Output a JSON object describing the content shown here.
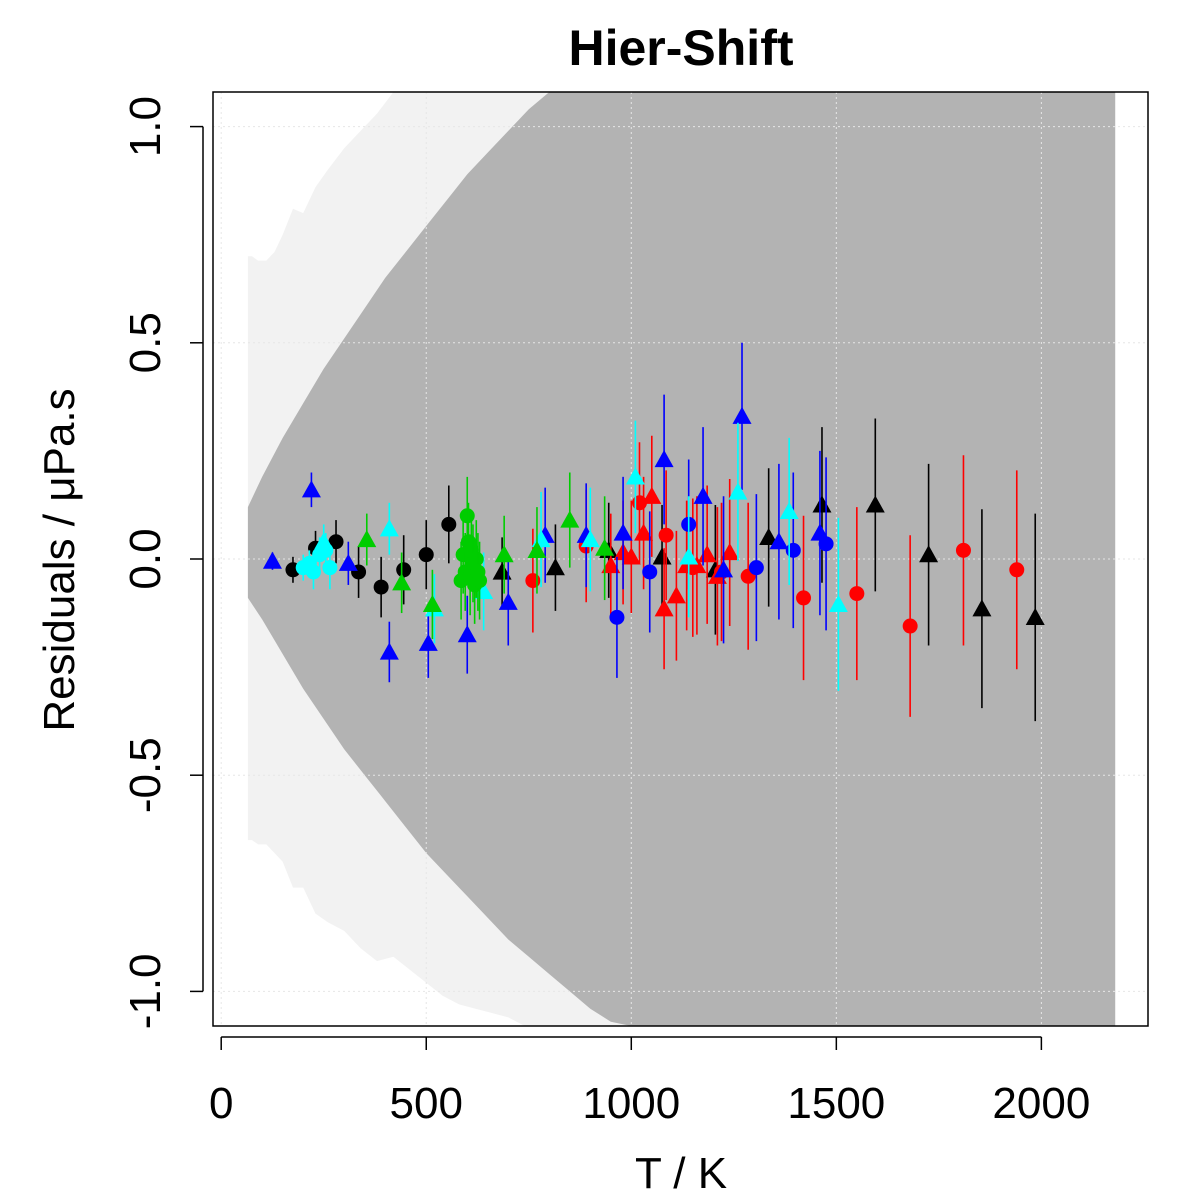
{
  "chart_data": {
    "type": "scatter",
    "title": "Hier-Shift",
    "xlabel": "T / K",
    "ylabel": "Residuals / μPa.s",
    "xlim": [
      -20,
      2260
    ],
    "ylim": [
      -1.08,
      1.08
    ],
    "xticks": [
      0,
      500,
      1000,
      1500,
      2000
    ],
    "xtick_labels": [
      "0",
      "500",
      "1000",
      "1500",
      "2000"
    ],
    "yticks": [
      -1.0,
      -0.5,
      0.0,
      0.5,
      1.0
    ],
    "ytick_labels": [
      "-1.0",
      "-0.5",
      "0.0",
      "0.5",
      "1.0"
    ],
    "grid": true,
    "colors": {
      "light_band": "#f2f2f2",
      "dark_band": "#b3b3b3",
      "black": "#000000",
      "red": "#ff0000",
      "blue": "#0000ff",
      "cyan": "#00ffff",
      "green": "#00cd00",
      "grid": "#e6e6e6"
    },
    "bands": [
      {
        "name": "outer",
        "color": "#f2f2f2",
        "x": [
          65,
          75,
          90,
          110,
          130,
          150,
          175,
          200,
          230,
          260,
          300,
          340,
          380,
          420,
          460,
          500,
          540,
          580,
          620,
          660,
          700,
          740,
          760,
          2180
        ],
        "upper": [
          0.7,
          0.7,
          0.69,
          0.69,
          0.71,
          0.75,
          0.81,
          0.8,
          0.86,
          0.9,
          0.95,
          0.99,
          1.03,
          1.08,
          1.08,
          1.08,
          1.08,
          1.08,
          1.08,
          1.08,
          1.08,
          1.08,
          1.08,
          1.08
        ],
        "lower": [
          -0.65,
          -0.65,
          -0.66,
          -0.66,
          -0.68,
          -0.7,
          -0.76,
          -0.76,
          -0.82,
          -0.84,
          -0.86,
          -0.9,
          -0.93,
          -0.92,
          -0.95,
          -0.98,
          -1.01,
          -1.03,
          -1.04,
          -1.05,
          -1.06,
          -1.08,
          -1.08,
          -1.08
        ]
      },
      {
        "name": "inner",
        "color": "#b3b3b3",
        "x": [
          65,
          100,
          150,
          200,
          250,
          300,
          350,
          400,
          450,
          500,
          550,
          600,
          650,
          700,
          750,
          800,
          850,
          900,
          950,
          1000,
          1050,
          1100,
          2180
        ],
        "upper": [
          0.12,
          0.19,
          0.28,
          0.36,
          0.44,
          0.51,
          0.58,
          0.65,
          0.71,
          0.77,
          0.83,
          0.89,
          0.94,
          0.99,
          1.04,
          1.08,
          1.08,
          1.08,
          1.08,
          1.08,
          1.08,
          1.08,
          1.08
        ],
        "lower": [
          -0.09,
          -0.14,
          -0.22,
          -0.3,
          -0.37,
          -0.44,
          -0.5,
          -0.56,
          -0.62,
          -0.68,
          -0.73,
          -0.78,
          -0.83,
          -0.88,
          -0.92,
          -0.96,
          -1.0,
          -1.04,
          -1.07,
          -1.08,
          -1.08,
          -1.08,
          -1.08
        ]
      }
    ],
    "series": [
      {
        "color": "#000000",
        "points": [
          {
            "x": 175,
            "y": -0.025,
            "err": 0.03,
            "shape": "circle"
          },
          {
            "x": 230,
            "y": 0.025,
            "err": 0.04,
            "shape": "circle"
          },
          {
            "x": 280,
            "y": 0.04,
            "err": 0.05,
            "shape": "circle"
          },
          {
            "x": 335,
            "y": -0.03,
            "err": 0.06,
            "shape": "circle"
          },
          {
            "x": 390,
            "y": -0.065,
            "err": 0.07,
            "shape": "circle"
          },
          {
            "x": 445,
            "y": -0.025,
            "err": 0.08,
            "shape": "circle"
          },
          {
            "x": 500,
            "y": 0.01,
            "err": 0.08,
            "shape": "circle"
          },
          {
            "x": 555,
            "y": 0.08,
            "err": 0.09,
            "shape": "circle"
          },
          {
            "x": 685,
            "y": -0.03,
            "err": 0.08,
            "shape": "triangle"
          },
          {
            "x": 815,
            "y": -0.02,
            "err": 0.1,
            "shape": "triangle"
          },
          {
            "x": 945,
            "y": 0.02,
            "err": 0.11,
            "shape": "triangle"
          },
          {
            "x": 1075,
            "y": 0.005,
            "err": 0.12,
            "shape": "triangle"
          },
          {
            "x": 1205,
            "y": -0.025,
            "err": 0.15,
            "shape": "triangle"
          },
          {
            "x": 1335,
            "y": 0.05,
            "err": 0.16,
            "shape": "triangle"
          },
          {
            "x": 1465,
            "y": 0.125,
            "err": 0.18,
            "shape": "triangle"
          },
          {
            "x": 1595,
            "y": 0.125,
            "err": 0.2,
            "shape": "triangle"
          },
          {
            "x": 1725,
            "y": 0.01,
            "err": 0.21,
            "shape": "triangle"
          },
          {
            "x": 1855,
            "y": -0.115,
            "err": 0.23,
            "shape": "triangle"
          },
          {
            "x": 1985,
            "y": -0.135,
            "err": 0.24,
            "shape": "triangle"
          }
        ]
      },
      {
        "color": "#ff0000",
        "points": [
          {
            "x": 760,
            "y": -0.05,
            "err": 0.12,
            "shape": "circle"
          },
          {
            "x": 890,
            "y": 0.03,
            "err": 0.13,
            "shape": "circle"
          },
          {
            "x": 1020,
            "y": 0.13,
            "err": 0.14,
            "shape": "circle"
          },
          {
            "x": 1085,
            "y": 0.055,
            "err": 0.15,
            "shape": "circle"
          },
          {
            "x": 1150,
            "y": -0.02,
            "err": 0.16,
            "shape": "circle"
          },
          {
            "x": 1220,
            "y": -0.03,
            "err": 0.16,
            "shape": "circle"
          },
          {
            "x": 1285,
            "y": -0.04,
            "err": 0.17,
            "shape": "circle"
          },
          {
            "x": 1420,
            "y": -0.09,
            "err": 0.19,
            "shape": "circle"
          },
          {
            "x": 1550,
            "y": -0.08,
            "err": 0.2,
            "shape": "circle"
          },
          {
            "x": 1680,
            "y": -0.155,
            "err": 0.21,
            "shape": "circle"
          },
          {
            "x": 1810,
            "y": 0.02,
            "err": 0.22,
            "shape": "circle"
          },
          {
            "x": 1940,
            "y": -0.025,
            "err": 0.23,
            "shape": "circle"
          },
          {
            "x": 950,
            "y": -0.015,
            "err": 0.12,
            "shape": "triangle"
          },
          {
            "x": 980,
            "y": 0.015,
            "err": 0.12,
            "shape": "triangle"
          },
          {
            "x": 1000,
            "y": 0.005,
            "err": 0.13,
            "shape": "triangle"
          },
          {
            "x": 1030,
            "y": 0.06,
            "err": 0.13,
            "shape": "triangle"
          },
          {
            "x": 1050,
            "y": 0.145,
            "err": 0.14,
            "shape": "triangle"
          },
          {
            "x": 1080,
            "y": -0.115,
            "err": 0.14,
            "shape": "triangle"
          },
          {
            "x": 1110,
            "y": -0.085,
            "err": 0.15,
            "shape": "triangle"
          },
          {
            "x": 1135,
            "y": -0.015,
            "err": 0.15,
            "shape": "triangle"
          },
          {
            "x": 1160,
            "y": -0.015,
            "err": 0.16,
            "shape": "triangle"
          },
          {
            "x": 1185,
            "y": 0.01,
            "err": 0.16,
            "shape": "triangle"
          },
          {
            "x": 1210,
            "y": -0.04,
            "err": 0.16,
            "shape": "triangle"
          },
          {
            "x": 1240,
            "y": 0.015,
            "err": 0.17,
            "shape": "triangle"
          }
        ]
      },
      {
        "color": "#0000ff",
        "points": [
          {
            "x": 965,
            "y": -0.135,
            "err": 0.14,
            "shape": "circle"
          },
          {
            "x": 1045,
            "y": -0.03,
            "err": 0.14,
            "shape": "circle"
          },
          {
            "x": 1140,
            "y": 0.08,
            "err": 0.15,
            "shape": "circle"
          },
          {
            "x": 1305,
            "y": -0.02,
            "err": 0.17,
            "shape": "circle"
          },
          {
            "x": 1395,
            "y": 0.02,
            "err": 0.18,
            "shape": "circle"
          },
          {
            "x": 1475,
            "y": 0.035,
            "err": 0.2,
            "shape": "circle"
          },
          {
            "x": 125,
            "y": -0.005,
            "err": 0.02,
            "shape": "triangle"
          },
          {
            "x": 220,
            "y": 0.16,
            "err": 0.04,
            "shape": "triangle"
          },
          {
            "x": 310,
            "y": -0.01,
            "err": 0.05,
            "shape": "triangle"
          },
          {
            "x": 410,
            "y": -0.215,
            "err": 0.07,
            "shape": "triangle"
          },
          {
            "x": 505,
            "y": -0.195,
            "err": 0.08,
            "shape": "triangle"
          },
          {
            "x": 600,
            "y": -0.175,
            "err": 0.09,
            "shape": "triangle"
          },
          {
            "x": 700,
            "y": -0.1,
            "err": 0.1,
            "shape": "triangle"
          },
          {
            "x": 790,
            "y": 0.055,
            "err": 0.11,
            "shape": "triangle"
          },
          {
            "x": 890,
            "y": 0.055,
            "err": 0.12,
            "shape": "triangle"
          },
          {
            "x": 980,
            "y": 0.06,
            "err": 0.13,
            "shape": "triangle"
          },
          {
            "x": 1080,
            "y": 0.23,
            "err": 0.15,
            "shape": "triangle"
          },
          {
            "x": 1175,
            "y": 0.145,
            "err": 0.16,
            "shape": "triangle"
          },
          {
            "x": 1225,
            "y": -0.025,
            "err": 0.17,
            "shape": "triangle"
          },
          {
            "x": 1270,
            "y": 0.33,
            "err": 0.17,
            "shape": "triangle"
          },
          {
            "x": 1360,
            "y": 0.04,
            "err": 0.18,
            "shape": "triangle"
          },
          {
            "x": 1460,
            "y": 0.06,
            "err": 0.19,
            "shape": "triangle"
          }
        ]
      },
      {
        "color": "#00ffff",
        "points": [
          {
            "x": 200,
            "y": -0.02,
            "err": 0.03,
            "shape": "circle"
          },
          {
            "x": 215,
            "y": -0.01,
            "err": 0.03,
            "shape": "circle"
          },
          {
            "x": 225,
            "y": -0.03,
            "err": 0.04,
            "shape": "circle"
          },
          {
            "x": 240,
            "y": 0.01,
            "err": 0.04,
            "shape": "circle"
          },
          {
            "x": 255,
            "y": 0.02,
            "err": 0.04,
            "shape": "circle"
          },
          {
            "x": 265,
            "y": -0.02,
            "err": 0.05,
            "shape": "circle"
          },
          {
            "x": 250,
            "y": 0.04,
            "err": 0.04,
            "shape": "triangle"
          },
          {
            "x": 410,
            "y": 0.07,
            "err": 0.06,
            "shape": "triangle"
          },
          {
            "x": 520,
            "y": -0.115,
            "err": 0.08,
            "shape": "triangle"
          },
          {
            "x": 640,
            "y": -0.075,
            "err": 0.09,
            "shape": "triangle"
          },
          {
            "x": 780,
            "y": 0.045,
            "err": 0.11,
            "shape": "triangle"
          },
          {
            "x": 900,
            "y": 0.045,
            "err": 0.12,
            "shape": "triangle"
          },
          {
            "x": 1010,
            "y": 0.19,
            "err": 0.13,
            "shape": "triangle"
          },
          {
            "x": 1140,
            "y": 0.005,
            "err": 0.14,
            "shape": "triangle"
          },
          {
            "x": 1260,
            "y": 0.155,
            "err": 0.16,
            "shape": "triangle"
          },
          {
            "x": 1385,
            "y": 0.11,
            "err": 0.17,
            "shape": "triangle"
          },
          {
            "x": 1505,
            "y": -0.105,
            "err": 0.2,
            "shape": "triangle"
          }
        ]
      },
      {
        "color": "#00cd00",
        "points": [
          {
            "x": 585,
            "y": -0.05,
            "err": 0.09,
            "shape": "circle"
          },
          {
            "x": 590,
            "y": 0.01,
            "err": 0.09,
            "shape": "circle"
          },
          {
            "x": 595,
            "y": -0.03,
            "err": 0.09,
            "shape": "circle"
          },
          {
            "x": 600,
            "y": 0.1,
            "err": 0.09,
            "shape": "circle"
          },
          {
            "x": 603,
            "y": 0.04,
            "err": 0.09,
            "shape": "circle"
          },
          {
            "x": 607,
            "y": -0.04,
            "err": 0.09,
            "shape": "circle"
          },
          {
            "x": 610,
            "y": 0.02,
            "err": 0.09,
            "shape": "circle"
          },
          {
            "x": 614,
            "y": -0.01,
            "err": 0.09,
            "shape": "circle"
          },
          {
            "x": 618,
            "y": -0.06,
            "err": 0.09,
            "shape": "circle"
          },
          {
            "x": 622,
            "y": 0.0,
            "err": 0.09,
            "shape": "circle"
          },
          {
            "x": 626,
            "y": -0.03,
            "err": 0.09,
            "shape": "circle"
          },
          {
            "x": 630,
            "y": -0.05,
            "err": 0.09,
            "shape": "circle"
          },
          {
            "x": 355,
            "y": 0.045,
            "err": 0.06,
            "shape": "triangle"
          },
          {
            "x": 440,
            "y": -0.055,
            "err": 0.07,
            "shape": "triangle"
          },
          {
            "x": 515,
            "y": -0.105,
            "err": 0.08,
            "shape": "triangle"
          },
          {
            "x": 690,
            "y": 0.01,
            "err": 0.09,
            "shape": "triangle"
          },
          {
            "x": 770,
            "y": 0.02,
            "err": 0.1,
            "shape": "triangle"
          },
          {
            "x": 850,
            "y": 0.09,
            "err": 0.11,
            "shape": "triangle"
          },
          {
            "x": 935,
            "y": 0.025,
            "err": 0.12,
            "shape": "triangle"
          }
        ]
      }
    ]
  }
}
